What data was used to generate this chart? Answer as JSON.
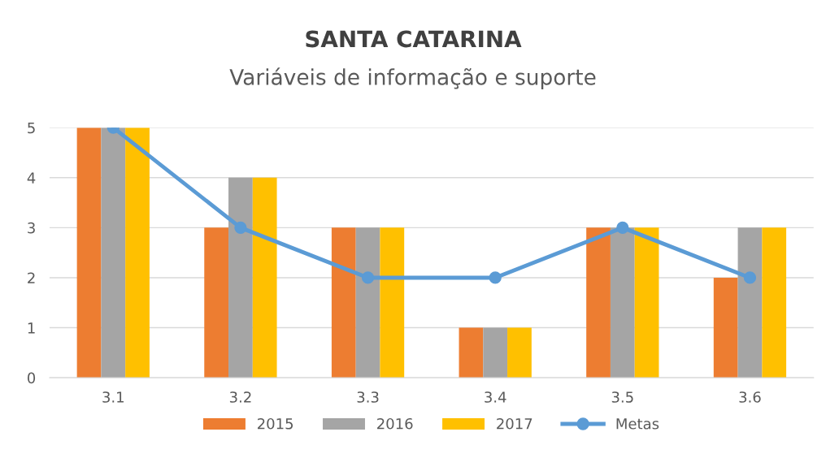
{
  "chart_data": {
    "type": "bar",
    "title": "SANTA CATARINA",
    "subtitle": "Variáveis de informação e suporte",
    "categories": [
      "3.1",
      "3.2",
      "3.3",
      "3.4",
      "3.5",
      "3.6"
    ],
    "series": [
      {
        "name": "2015",
        "color": "#ed7d31",
        "values": [
          5,
          3,
          3,
          1,
          3,
          2
        ]
      },
      {
        "name": "2016",
        "color": "#a5a5a5",
        "values": [
          5,
          4,
          3,
          1,
          3,
          3
        ]
      },
      {
        "name": "2017",
        "color": "#ffc000",
        "values": [
          5,
          4,
          3,
          1,
          3,
          3
        ]
      },
      {
        "name": "Metas",
        "color": "#5b9bd5",
        "type": "line",
        "marker": "circle",
        "values": [
          5,
          3,
          2,
          2,
          3,
          2
        ]
      }
    ],
    "ylim": [
      0,
      5
    ],
    "yticks": [
      0,
      1,
      2,
      3,
      4,
      5
    ],
    "grid": "y",
    "legend": "bottom"
  }
}
